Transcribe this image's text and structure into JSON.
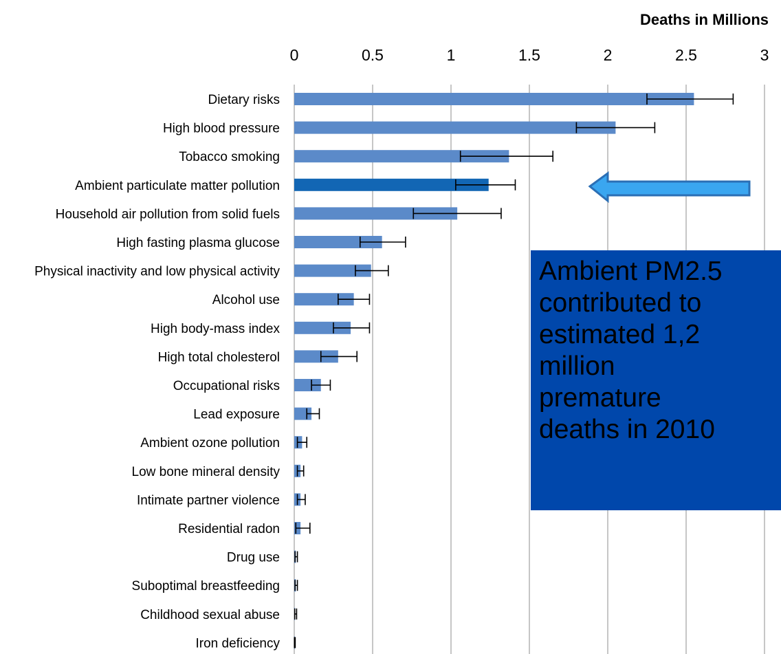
{
  "colors": {
    "bar": "#5b8ac9",
    "bar_highlight": "#1266b4",
    "arrow_fill": "#3aa6f0",
    "arrow_stroke": "#2b6fb5",
    "callout_bg": "#0047ab"
  },
  "chart_data": {
    "type": "bar",
    "orientation": "horizontal",
    "title": "",
    "xlabel": "Deaths in Millions",
    "ylabel": "",
    "xlim": [
      0,
      3
    ],
    "x_ticks": [
      "0",
      "0.5",
      "1",
      "1.5",
      "2",
      "2.5",
      "3"
    ],
    "grid": "vertical",
    "axis_position": "top",
    "highlighted_category": "Ambient particulate matter pollution",
    "categories": [
      "Dietary risks",
      "High blood pressure",
      "Tobacco smoking",
      "Ambient particulate matter pollution",
      "Household air pollution from solid fuels",
      "High fasting plasma glucose",
      "Physical inactivity and low physical activity",
      "Alcohol use",
      "High body-mass index",
      "High total cholesterol",
      "Occupational risks",
      "Lead exposure",
      "Ambient ozone pollution",
      "Low bone mineral density",
      "Intimate partner violence",
      "Residential radon",
      "Drug use",
      "Suboptimal breastfeeding",
      "Childhood sexual abuse",
      "Iron deficiency"
    ],
    "values": [
      2.55,
      2.05,
      1.37,
      1.24,
      1.04,
      0.56,
      0.49,
      0.38,
      0.36,
      0.28,
      0.17,
      0.11,
      0.05,
      0.04,
      0.04,
      0.04,
      0.01,
      0.01,
      0.005,
      0.003
    ],
    "error_low": [
      2.25,
      1.8,
      1.06,
      1.03,
      0.76,
      0.42,
      0.39,
      0.28,
      0.25,
      0.17,
      0.11,
      0.08,
      0.02,
      0.02,
      0.02,
      0.01,
      0.005,
      0.005,
      0.003,
      0.001
    ],
    "error_high": [
      2.8,
      2.3,
      1.65,
      1.41,
      1.32,
      0.71,
      0.6,
      0.48,
      0.48,
      0.4,
      0.23,
      0.16,
      0.08,
      0.06,
      0.07,
      0.1,
      0.02,
      0.02,
      0.015,
      0.006
    ]
  },
  "callout": {
    "text": "Ambient PM2.5\ncontributed to\nestimated 1,2\nmillion\npremature\ndeaths in 2010"
  }
}
